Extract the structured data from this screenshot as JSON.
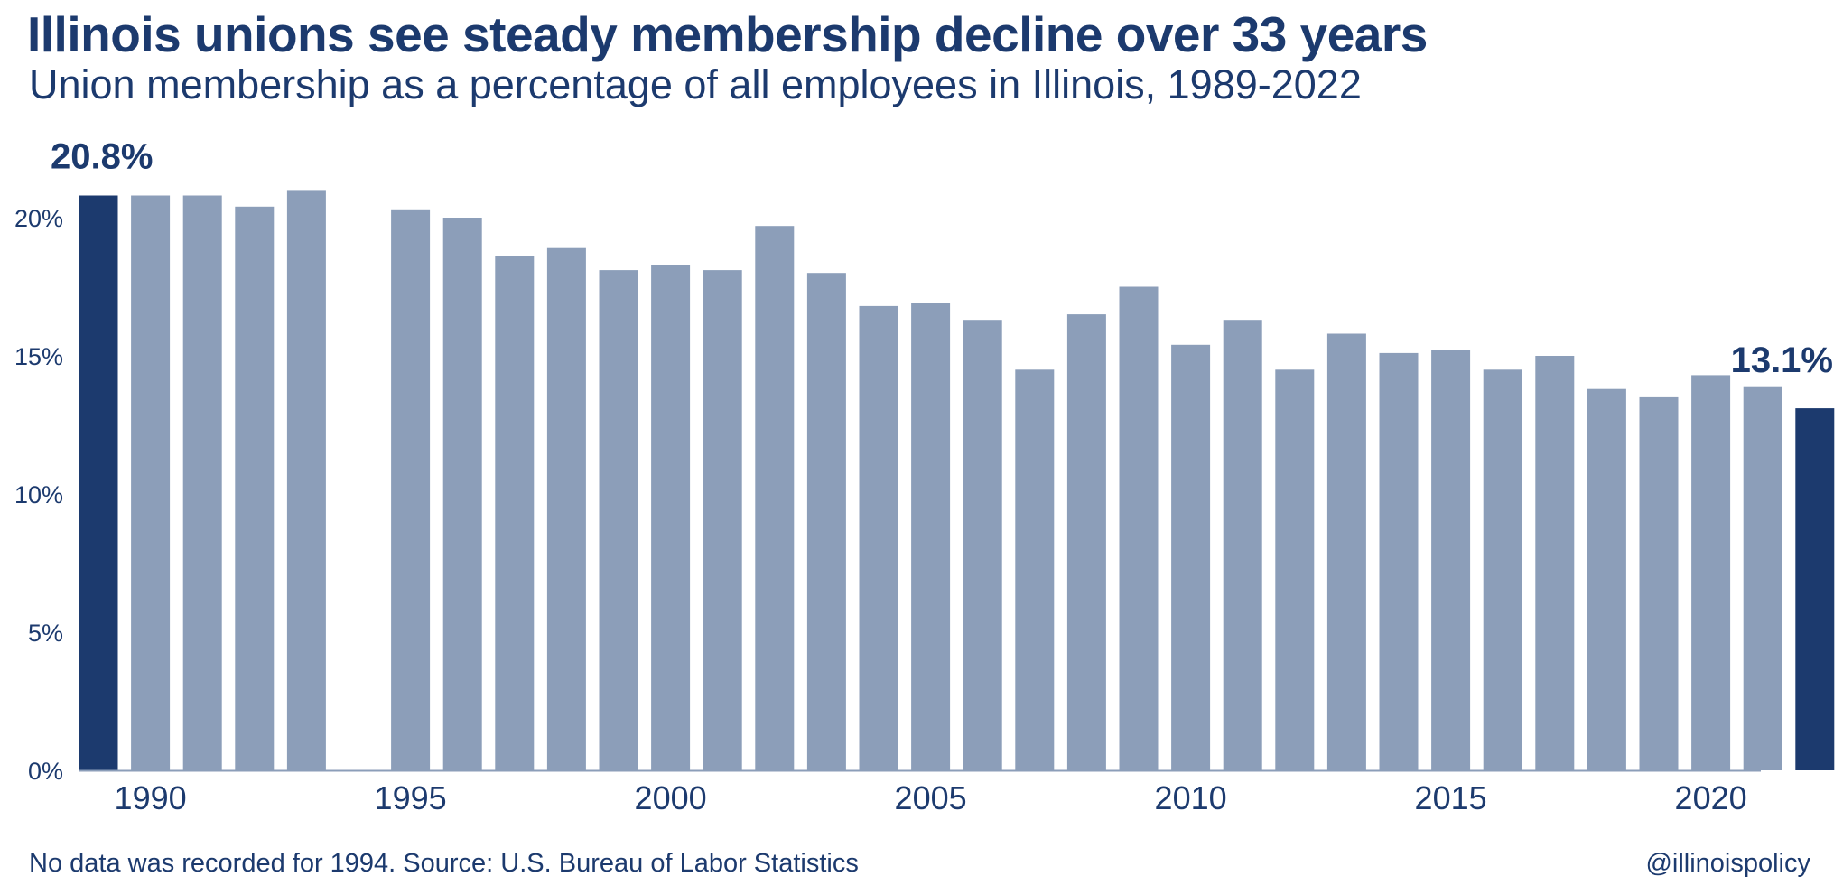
{
  "title": "Illinois unions see steady membership decline over 33 years",
  "subtitle": "Union membership as a percentage of all employees in Illinois, 1989-2022",
  "footer": {
    "source": "No data was recorded for 1994. Source: U.S. Bureau of Labor Statistics",
    "handle": "@illinoispolicy"
  },
  "colors": {
    "highlight": "#1c3a6e",
    "bar": "#8c9eb9",
    "text": "#1c3a6e",
    "axis": "#8c9eb9"
  },
  "chart_data": {
    "type": "bar",
    "title": "Illinois unions see steady membership decline over 33 years",
    "subtitle": "Union membership as a percentage of all employees in Illinois, 1989-2022",
    "xlabel": "",
    "ylabel": "",
    "ylim": [
      0,
      21.5
    ],
    "yticks": [
      0,
      5,
      10,
      15,
      20
    ],
    "ytick_labels": [
      "0%",
      "5%",
      "10%",
      "15%",
      "20%"
    ],
    "xtick_labels": [
      "1990",
      "1995",
      "2000",
      "2005",
      "2010",
      "2015",
      "2020"
    ],
    "grid": false,
    "categories": [
      1989,
      1990,
      1991,
      1992,
      1993,
      1994,
      1995,
      1996,
      1997,
      1998,
      1999,
      2000,
      2001,
      2002,
      2003,
      2004,
      2005,
      2006,
      2007,
      2008,
      2009,
      2010,
      2011,
      2012,
      2013,
      2014,
      2015,
      2016,
      2017,
      2018,
      2019,
      2020,
      2021,
      2022
    ],
    "values": [
      20.8,
      20.8,
      20.8,
      20.4,
      21.0,
      null,
      20.3,
      20.0,
      18.6,
      18.9,
      18.1,
      18.3,
      18.1,
      19.7,
      18.0,
      16.8,
      16.9,
      16.3,
      14.5,
      16.5,
      17.5,
      15.4,
      16.3,
      14.5,
      15.8,
      15.1,
      15.2,
      14.5,
      15.0,
      13.8,
      13.5,
      14.3,
      13.9,
      13.1
    ],
    "highlighted": [
      1989,
      2022
    ],
    "annotations": [
      {
        "year": 1989,
        "text": "20.8%"
      },
      {
        "year": 2022,
        "text": "13.1%"
      }
    ]
  }
}
